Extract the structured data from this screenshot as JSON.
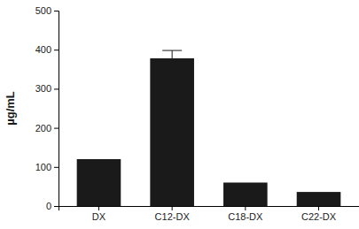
{
  "chart_data": {
    "type": "bar",
    "y_label": "µg/mL",
    "categories": [
      "DX",
      "C12-DX",
      "C18-DX",
      "C22-DX"
    ],
    "values": [
      120,
      378,
      60,
      36
    ],
    "errors": [
      null,
      20,
      null,
      null
    ],
    "color": "#1a1a1a",
    "ylim": [
      0,
      500
    ],
    "yticks": [
      0,
      100,
      200,
      300,
      400,
      500
    ],
    "grid": false
  }
}
